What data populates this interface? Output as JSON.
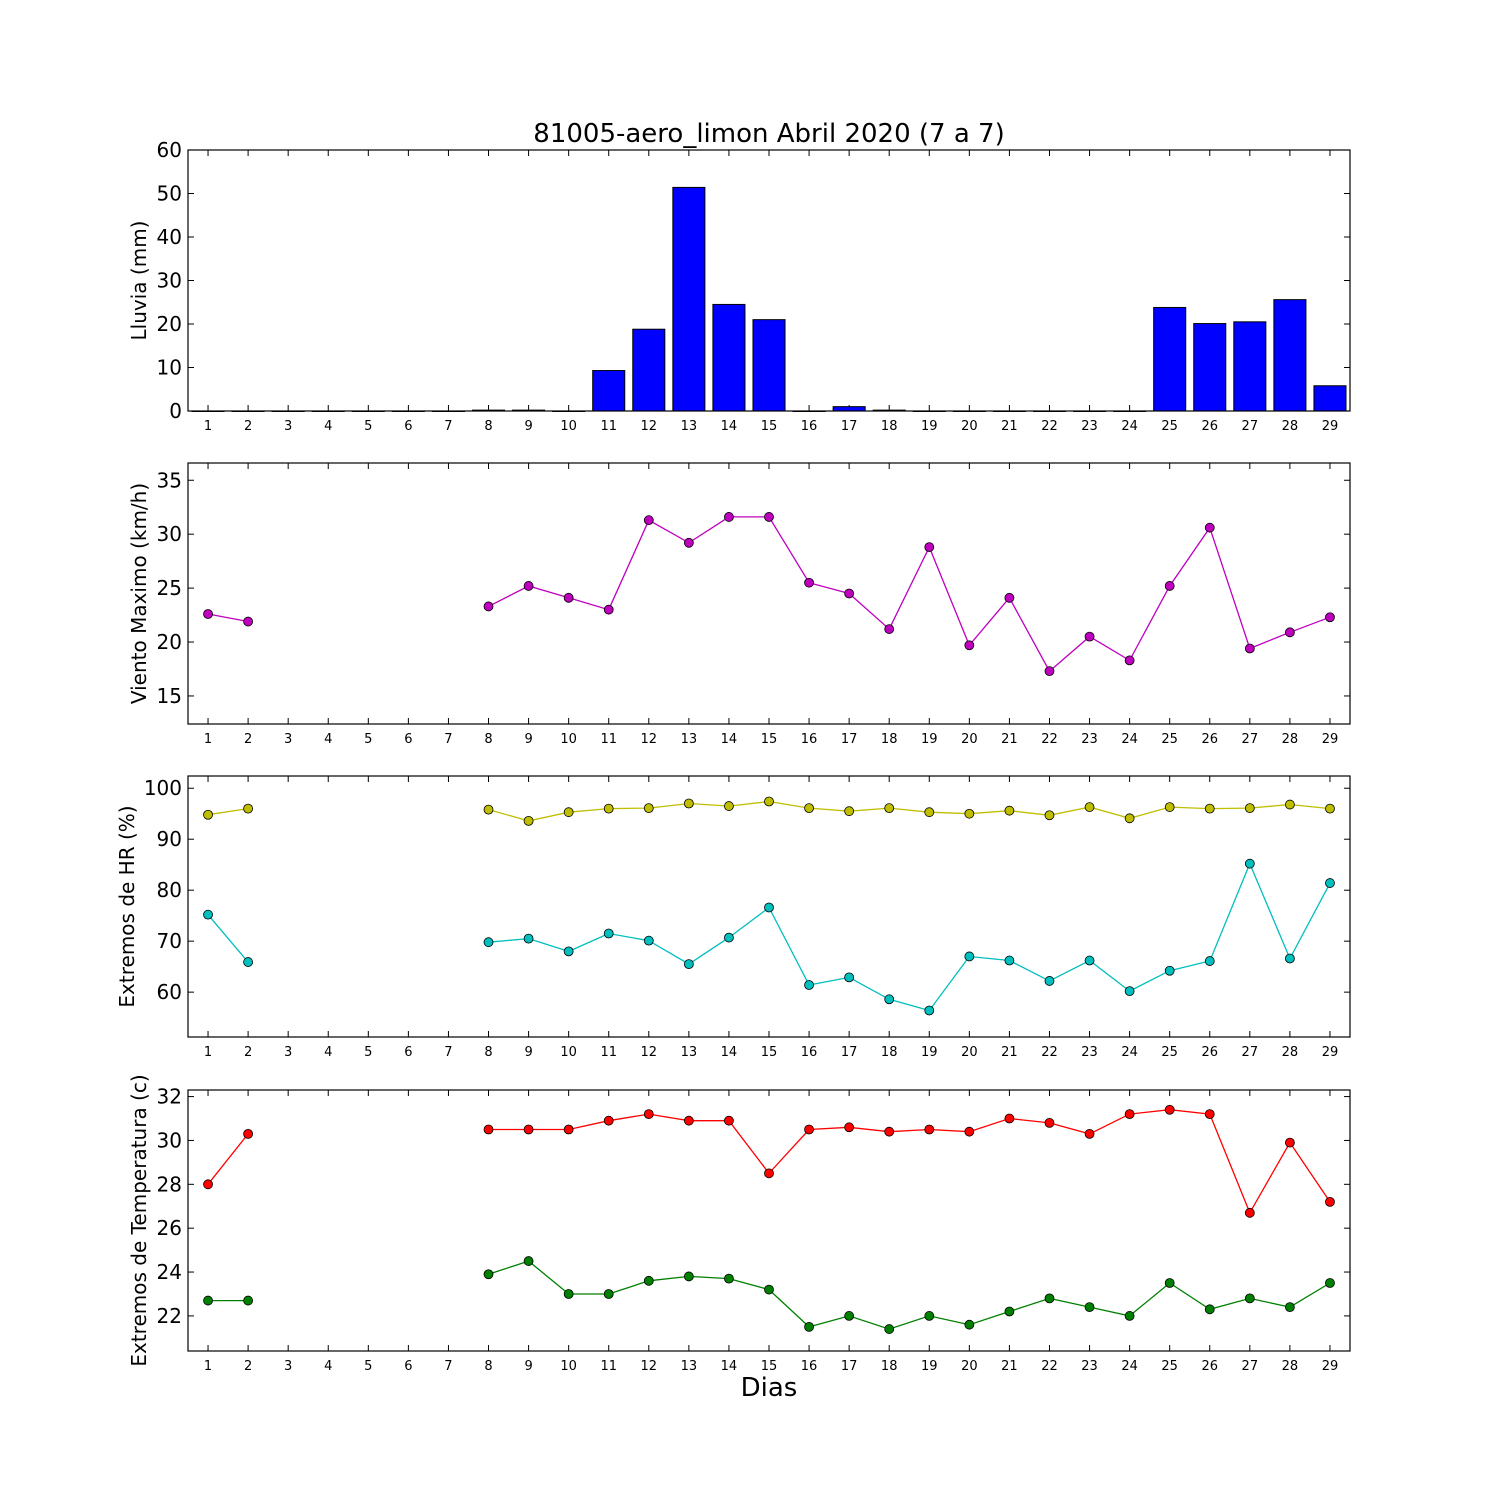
{
  "figure": {
    "title": "81005-aero_limon Abril 2020  (7 a 7)",
    "xlabel": "Dias"
  },
  "chart_data": [
    {
      "type": "bar",
      "ylabel": "Lluvia (mm)",
      "ylim": [
        0,
        60
      ],
      "yticks": [
        0,
        10,
        20,
        30,
        40,
        50,
        60
      ],
      "categories": [
        1,
        2,
        3,
        4,
        5,
        6,
        7,
        8,
        9,
        10,
        11,
        12,
        13,
        14,
        15,
        16,
        17,
        18,
        19,
        20,
        21,
        22,
        23,
        24,
        25,
        26,
        27,
        28,
        29
      ],
      "bar_color": "#0000ff",
      "series": [
        {
          "values": [
            0,
            0,
            0,
            0,
            0,
            0,
            0,
            0.2,
            0.2,
            0,
            9.3,
            18.8,
            51.4,
            24.5,
            21.0,
            0,
            1.0,
            0.2,
            0,
            0,
            0,
            0,
            0,
            0,
            23.8,
            20.1,
            20.5,
            25.6,
            5.8
          ]
        }
      ]
    },
    {
      "type": "line",
      "ylabel": "Viento Maximo (km/h)",
      "ylim": [
        12.4,
        36.6
      ],
      "yticks": [
        15,
        20,
        25,
        30,
        35
      ],
      "x": [
        1,
        2,
        3,
        4,
        5,
        6,
        7,
        8,
        9,
        10,
        11,
        12,
        13,
        14,
        15,
        16,
        17,
        18,
        19,
        20,
        21,
        22,
        23,
        24,
        25,
        26,
        27,
        28,
        29
      ],
      "series": [
        {
          "color": "#bf00bf",
          "values": [
            22.6,
            21.9,
            null,
            null,
            null,
            null,
            null,
            23.3,
            25.2,
            24.1,
            23.0,
            31.3,
            29.2,
            31.6,
            31.6,
            25.5,
            24.5,
            21.2,
            28.8,
            19.7,
            24.1,
            17.3,
            20.5,
            18.3,
            25.2,
            30.6,
            19.4,
            20.9,
            22.3
          ]
        }
      ]
    },
    {
      "type": "line",
      "ylabel": "Extremos de HR (%)",
      "ylim": [
        51.2,
        102.4
      ],
      "yticks": [
        60,
        70,
        80,
        90,
        100
      ],
      "x": [
        1,
        2,
        3,
        4,
        5,
        6,
        7,
        8,
        9,
        10,
        11,
        12,
        13,
        14,
        15,
        16,
        17,
        18,
        19,
        20,
        21,
        22,
        23,
        24,
        25,
        26,
        27,
        28,
        29
      ],
      "series": [
        {
          "color": "#bfbf00",
          "values": [
            94.8,
            96.0,
            null,
            null,
            null,
            null,
            null,
            95.8,
            93.6,
            95.3,
            96.0,
            96.1,
            97.0,
            96.5,
            97.4,
            96.1,
            95.5,
            96.1,
            95.3,
            95.0,
            95.6,
            94.7,
            96.3,
            94.1,
            96.3,
            96.0,
            96.1,
            96.8,
            96.0
          ]
        },
        {
          "color": "#00bfbf",
          "values": [
            75.2,
            65.9,
            null,
            null,
            null,
            null,
            null,
            69.8,
            70.5,
            68.0,
            71.5,
            70.1,
            65.5,
            70.7,
            76.6,
            61.4,
            62.9,
            58.6,
            56.4,
            67.0,
            66.2,
            62.2,
            66.2,
            60.2,
            64.2,
            66.1,
            85.2,
            66.6,
            81.4
          ]
        }
      ]
    },
    {
      "type": "line",
      "ylabel": "Extremos de Temperatura (c)",
      "ylim": [
        20.4,
        32.3
      ],
      "yticks": [
        22,
        24,
        26,
        28,
        30,
        32
      ],
      "x": [
        1,
        2,
        3,
        4,
        5,
        6,
        7,
        8,
        9,
        10,
        11,
        12,
        13,
        14,
        15,
        16,
        17,
        18,
        19,
        20,
        21,
        22,
        23,
        24,
        25,
        26,
        27,
        28,
        29
      ],
      "series": [
        {
          "color": "#ff0000",
          "values": [
            28.0,
            30.3,
            null,
            null,
            null,
            null,
            null,
            30.5,
            30.5,
            30.5,
            30.9,
            31.2,
            30.9,
            30.9,
            28.5,
            30.5,
            30.6,
            30.4,
            30.5,
            30.4,
            31.0,
            30.8,
            30.3,
            31.2,
            31.4,
            31.2,
            26.7,
            29.9,
            27.2
          ]
        },
        {
          "color": "#008000",
          "values": [
            22.7,
            22.7,
            null,
            null,
            null,
            null,
            null,
            23.9,
            24.5,
            23.0,
            23.0,
            23.6,
            23.8,
            23.7,
            23.2,
            21.5,
            22.0,
            21.4,
            22.0,
            21.6,
            22.2,
            22.8,
            22.4,
            22.0,
            23.5,
            22.3,
            22.8,
            22.4,
            23.5
          ]
        }
      ]
    }
  ]
}
